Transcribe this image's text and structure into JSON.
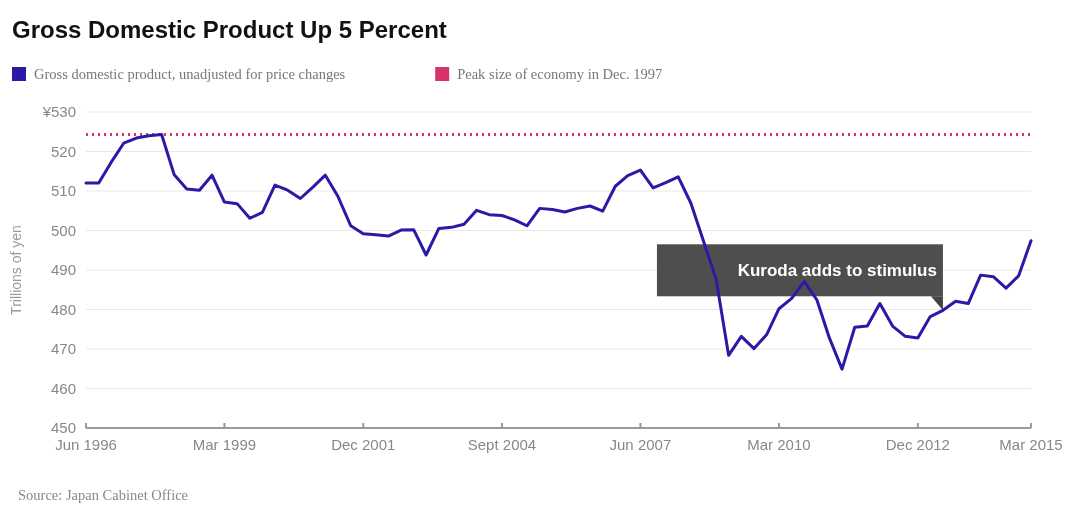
{
  "chart_data": {
    "type": "line",
    "title": "Gross Domestic Product Up 5 Percent",
    "ylabel": "Trillions of yen",
    "x": [
      "1996-06",
      "1996-09",
      "1996-12",
      "1997-03",
      "1997-06",
      "1997-09",
      "1997-12",
      "1998-03",
      "1998-06",
      "1998-09",
      "1998-12",
      "1999-03",
      "1999-06",
      "1999-09",
      "1999-12",
      "2000-03",
      "2000-06",
      "2000-09",
      "2000-12",
      "2001-03",
      "2001-06",
      "2001-09",
      "2001-12",
      "2002-03",
      "2002-06",
      "2002-09",
      "2002-12",
      "2003-03",
      "2003-06",
      "2003-09",
      "2003-12",
      "2004-03",
      "2004-06",
      "2004-09",
      "2004-12",
      "2005-03",
      "2005-06",
      "2005-09",
      "2005-12",
      "2006-03",
      "2006-06",
      "2006-09",
      "2006-12",
      "2007-03",
      "2007-06",
      "2007-09",
      "2007-12",
      "2008-03",
      "2008-06",
      "2008-09",
      "2008-12",
      "2009-03",
      "2009-06",
      "2009-09",
      "2009-12",
      "2010-03",
      "2010-06",
      "2010-09",
      "2010-12",
      "2011-03",
      "2011-06",
      "2011-09",
      "2011-12",
      "2012-03",
      "2012-06",
      "2012-09",
      "2012-12",
      "2013-03",
      "2013-06",
      "2013-09",
      "2013-12",
      "2014-03",
      "2014-06",
      "2014-09",
      "2014-12",
      "2015-03"
    ],
    "series": [
      {
        "name": "Gross domestic product, unadjusted for price changes",
        "color": "#2a1aa6",
        "values": [
          512,
          512,
          517.3,
          522.1,
          523.4,
          524,
          524.3,
          514.2,
          510.5,
          510.2,
          514,
          507.2,
          506.8,
          503.1,
          504.6,
          511.5,
          510.2,
          508.1,
          511,
          514,
          508.6,
          501.2,
          499.2,
          498.9,
          498.6,
          500.1,
          500.2,
          493.8,
          500.5,
          500.8,
          501.6,
          505.1,
          504,
          503.8,
          502.7,
          501.2,
          505.6,
          505.3,
          504.7,
          505.6,
          506.2,
          504.9,
          511.2,
          513.9,
          515.3,
          510.8,
          512.1,
          513.6,
          506.9,
          497.2,
          487.6,
          468.4,
          473.2,
          470.1,
          473.6,
          480.2,
          482.8,
          487.1,
          482.4,
          472.8,
          464.9,
          475.5,
          475.8,
          481.5,
          475.8,
          473.2,
          472.8,
          478.2,
          479.8,
          482.1,
          481.5,
          488.7,
          488.3,
          485.4,
          488.5,
          497.4
        ]
      }
    ],
    "ref_lines": [
      {
        "axis": "y",
        "value": 524.3,
        "label": "Peak size of economy in Dec. 1997",
        "color": "#d6336c",
        "line_style": "dotted"
      }
    ],
    "xlim": [
      "1996-06",
      "2015-03"
    ],
    "xticks": [
      {
        "value": "1996-06",
        "label": "Jun 1996"
      },
      {
        "value": "1999-03",
        "label": "Mar 1999"
      },
      {
        "value": "2001-12",
        "label": "Dec 2001"
      },
      {
        "value": "2004-09",
        "label": "Sept 2004"
      },
      {
        "value": "2007-06",
        "label": "Jun 2007"
      },
      {
        "value": "2010-03",
        "label": "Mar 2010"
      },
      {
        "value": "2012-12",
        "label": "Dec 2012"
      },
      {
        "value": "2015-03",
        "label": "Mar 2015"
      }
    ],
    "ylim": [
      450,
      530
    ],
    "yticks": [
      450,
      460,
      470,
      480,
      490,
      500,
      510,
      520,
      {
        "value": 530,
        "label": "¥530"
      }
    ],
    "grid": "y",
    "legend": "top left",
    "line_style": "solid",
    "annotations": [
      {
        "text": "Kuroda adds to stimulus",
        "x": "2013-06",
        "y": 479.8
      },
      "Source: Japan Cabinet Office"
    ]
  }
}
